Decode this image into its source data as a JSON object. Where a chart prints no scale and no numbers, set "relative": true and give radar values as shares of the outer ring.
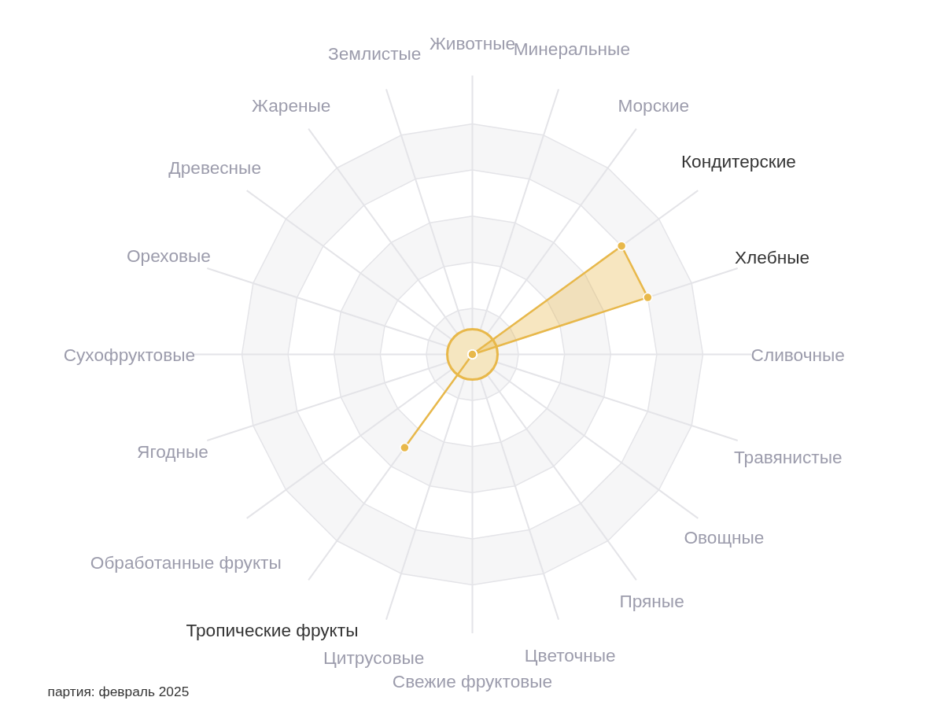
{
  "chart_data": {
    "type": "radar",
    "relative": true,
    "categories": [
      "Животные",
      "Минеральные",
      "Морские",
      "Кондитерские",
      "Хлебные",
      "Сливочные",
      "Травянистые",
      "Овощные",
      "Пряные",
      "Цветочные",
      "Свежие фруктовые",
      "Цитрусовые",
      "Тропические фрукты",
      "Обработанные фрукты",
      "Ягодные",
      "Сухофруктовые",
      "Ореховые",
      "Древесные",
      "Жареные",
      "Землистые"
    ],
    "series": [
      {
        "color": "#e8b84a",
        "values": [
          0,
          0,
          0,
          0.8,
          0.8,
          0,
          0,
          0,
          0,
          0,
          0,
          0,
          0.5,
          0,
          0,
          0,
          0,
          0,
          0,
          0
        ]
      }
    ],
    "grid": true,
    "marker": "circle",
    "annotations": [
      "партия: февраль 2025"
    ]
  }
}
